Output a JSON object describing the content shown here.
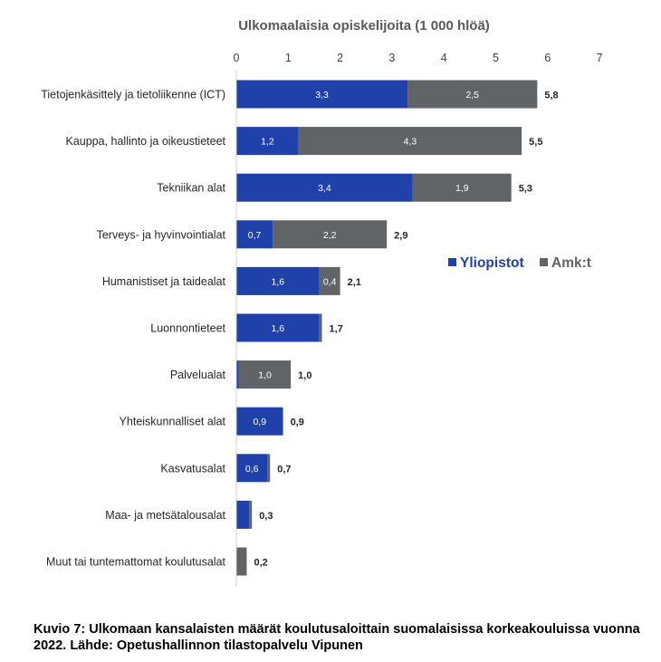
{
  "chart_data": {
    "type": "bar",
    "orientation": "horizontal",
    "stacked": true,
    "title": "Ulkomaalaisia opiskelijoita (1 000 hlöä)",
    "xlim": [
      0,
      7
    ],
    "x_ticks": [
      "0",
      "1",
      "2",
      "3",
      "4",
      "5",
      "6",
      "7"
    ],
    "grid": false,
    "legend_position": "right",
    "categories": [
      "Tietojenkäsittely ja tietoliikenne (ICT)",
      "Kauppa, hallinto ja oikeustieteet",
      "Tekniikan alat",
      "Terveys- ja hyvinvointialat",
      "Humanistiset ja taidealat",
      "Luonnontieteet",
      "Palvelualat",
      "Yhteiskunnalliset alat",
      "Kasvatusalat",
      "Maa- ja metsätalousalat",
      "Muut tai tuntemattomat koulutusalat"
    ],
    "series": [
      {
        "name": "Yliopistot",
        "color": "#2141AA",
        "values": [
          3.3,
          1.2,
          3.4,
          0.7,
          1.6,
          1.6,
          0.05,
          0.9,
          0.6,
          0.25,
          0
        ],
        "labels": [
          "3,3",
          "1,2",
          "3,4",
          "0,7",
          "1,6",
          "1,6",
          "",
          "0,9",
          "0,6",
          "",
          ""
        ]
      },
      {
        "name": "Amk:t",
        "color": "#606466",
        "values": [
          2.5,
          4.3,
          1.9,
          2.2,
          0.4,
          0.05,
          1.0,
          0.0,
          0.05,
          0.05,
          0.2
        ],
        "labels": [
          "2,5",
          "4,3",
          "1,9",
          "2,2",
          "0,4",
          "",
          "1,0",
          "",
          "",
          "",
          ""
        ]
      }
    ],
    "totals": [
      5.8,
      5.5,
      5.3,
      2.9,
      2.1,
      1.7,
      1.0,
      0.9,
      0.7,
      0.3,
      0.2
    ],
    "total_labels": [
      "5,8",
      "5,5",
      "5,3",
      "2,9",
      "2,1",
      "1,7",
      "1,0",
      "0,9",
      "0,7",
      "0,3",
      "0,2"
    ]
  },
  "caption": "Kuvio 7: Ulkomaan kansalaisten määrät koulutusaloittain suomalaisissa korkeakouluissa vuonna 2022. Lähde: Opetushallinnon tilastopalvelu Vipunen"
}
